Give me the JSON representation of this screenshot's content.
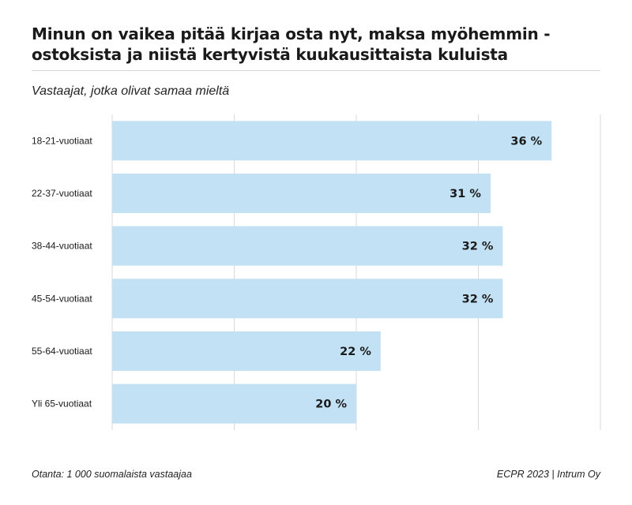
{
  "title": "Minun on vaikea pitää kirjaa osta nyt, maksa myöhemmin -ostoksista ja niistä kertyvistä kuukausittaista kuluista",
  "subtitle": "Vastaajat, jotka olivat samaa mieltä",
  "footer": {
    "sample": "Otanta: 1 000 suomalaista vastaajaa",
    "source": "ECPR 2023 | Intrum Oy"
  },
  "colors": {
    "bar": "#c2e1f4",
    "grid": "#d9d9d9",
    "text": "#1a1a1a"
  },
  "chart_data": {
    "type": "bar",
    "orientation": "horizontal",
    "categories": [
      "18-21-vuotiaat",
      "22-37-vuotiaat",
      "38-44-vuotiaat",
      "45-54-vuotiaat",
      "55-64-vuotiaat",
      "Yli 65-vuotiaat"
    ],
    "values": [
      36,
      31,
      32,
      32,
      22,
      20
    ],
    "value_labels": [
      "36 %",
      "31 %",
      "32 %",
      "32 %",
      "22 %",
      "20 %"
    ],
    "xlim": [
      0,
      40
    ],
    "grid": true,
    "legend": "none"
  }
}
